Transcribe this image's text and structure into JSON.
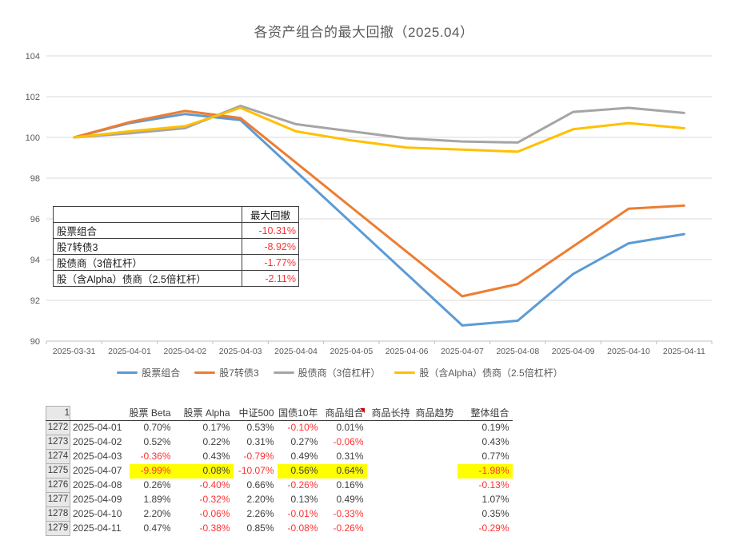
{
  "title": "各资产组合的最大回撤（2025.04）",
  "chart_data": {
    "type": "line",
    "title": "各资产组合的最大回撤（2025.04）",
    "x": [
      "2025-03-31",
      "2025-04-01",
      "2025-04-02",
      "2025-04-03",
      "2025-04-04",
      "2025-04-05",
      "2025-04-06",
      "2025-04-07",
      "2025-04-08",
      "2025-04-09",
      "2025-04-10",
      "2025-04-11"
    ],
    "ylim": [
      90,
      104
    ],
    "ytick_step": 2,
    "grid": true,
    "legend_position": "bottom",
    "series": [
      {
        "name": "股票组合",
        "color": "#5B9BD5",
        "values": [
          100,
          100.7,
          101.15,
          100.85,
          98.33,
          95.81,
          93.29,
          90.77,
          91.0,
          93.3,
          94.8,
          95.25
        ]
      },
      {
        "name": "股7转债3",
        "color": "#ED7D31",
        "values": [
          100,
          100.75,
          101.3,
          100.95,
          98.76,
          96.57,
          94.38,
          92.2,
          92.8,
          94.65,
          96.5,
          96.65
        ]
      },
      {
        "name": "股债商（3倍杠杆）",
        "color": "#A5A5A5",
        "values": [
          100,
          100.2,
          100.45,
          101.55,
          100.65,
          100.3,
          99.95,
          99.8,
          99.75,
          101.25,
          101.45,
          101.2
        ]
      },
      {
        "name": "股（含Alpha）债商（2.5倍杠杆）",
        "color": "#FFC000",
        "values": [
          100,
          100.3,
          100.55,
          101.45,
          100.3,
          99.85,
          99.5,
          99.4,
          99.3,
          100.4,
          100.7,
          100.45
        ]
      }
    ]
  },
  "drawdown_table": {
    "header": "最大回撤",
    "rows": [
      {
        "label": "股票组合",
        "value": "-10.31%"
      },
      {
        "label": "股7转债3",
        "value": "-8.92%"
      },
      {
        "label": "股债商（3倍杠杆）",
        "value": "-1.77%"
      },
      {
        "label": "股（含Alpha）债商（2.5倍杠杆）",
        "value": "-2.11%"
      }
    ]
  },
  "spreadsheet": {
    "header_row_number": "1",
    "columns": [
      {
        "label": "股票 Beta",
        "comment_marker": false
      },
      {
        "label": "股票 Alpha",
        "comment_marker": false
      },
      {
        "label": "中证500",
        "comment_marker": false
      },
      {
        "label": "国债10年",
        "comment_marker": false
      },
      {
        "label": "商品组合",
        "comment_marker": true
      },
      {
        "label": "商品长持",
        "comment_marker": false
      },
      {
        "label": "商品趋势",
        "comment_marker": false
      },
      {
        "label": "整体组合",
        "comment_marker": false
      }
    ],
    "rows": [
      {
        "row_number": "1272",
        "date": "2025-04-01",
        "cells": [
          "0.70%",
          "0.17%",
          "0.53%",
          "-0.10%",
          "0.01%",
          "",
          "",
          "0.19%"
        ],
        "highlight": [
          false,
          false,
          false,
          false,
          false,
          false,
          false,
          false
        ]
      },
      {
        "row_number": "1273",
        "date": "2025-04-02",
        "cells": [
          "0.52%",
          "0.22%",
          "0.31%",
          "0.27%",
          "-0.06%",
          "",
          "",
          "0.43%"
        ],
        "highlight": [
          false,
          false,
          false,
          false,
          false,
          false,
          false,
          false
        ]
      },
      {
        "row_number": "1274",
        "date": "2025-04-03",
        "cells": [
          "-0.36%",
          "0.43%",
          "-0.79%",
          "0.49%",
          "0.31%",
          "",
          "",
          "0.77%"
        ],
        "highlight": [
          false,
          false,
          false,
          false,
          false,
          false,
          false,
          false
        ]
      },
      {
        "row_number": "1275",
        "date": "2025-04-07",
        "cells": [
          "-9.99%",
          "0.08%",
          "-10.07%",
          "0.56%",
          "0.64%",
          "",
          "",
          "-1.98%"
        ],
        "highlight": [
          true,
          true,
          false,
          true,
          true,
          false,
          false,
          true
        ]
      },
      {
        "row_number": "1276",
        "date": "2025-04-08",
        "cells": [
          "0.26%",
          "-0.40%",
          "0.66%",
          "-0.26%",
          "0.16%",
          "",
          "",
          "-0.13%"
        ],
        "highlight": [
          false,
          false,
          false,
          false,
          false,
          false,
          false,
          false
        ]
      },
      {
        "row_number": "1277",
        "date": "2025-04-09",
        "cells": [
          "1.89%",
          "-0.32%",
          "2.20%",
          "0.13%",
          "0.49%",
          "",
          "",
          "1.07%"
        ],
        "highlight": [
          false,
          false,
          false,
          false,
          false,
          false,
          false,
          false
        ]
      },
      {
        "row_number": "1278",
        "date": "2025-04-10",
        "cells": [
          "2.20%",
          "-0.06%",
          "2.26%",
          "-0.01%",
          "-0.33%",
          "",
          "",
          "0.35%"
        ],
        "highlight": [
          false,
          false,
          false,
          false,
          false,
          false,
          false,
          false
        ]
      },
      {
        "row_number": "1279",
        "date": "2025-04-11",
        "cells": [
          "0.47%",
          "-0.38%",
          "0.85%",
          "-0.08%",
          "-0.26%",
          "",
          "",
          "-0.29%"
        ],
        "highlight": [
          false,
          false,
          false,
          false,
          false,
          false,
          false,
          false
        ]
      }
    ]
  },
  "colors": {
    "negative_text": "#FF3232",
    "positive_text": "#3F3F3F",
    "highlight": "#FFFF00",
    "gridline": "#D9D9D9",
    "axis": "#BFBFBF",
    "axis_label": "#595959",
    "title": "#595959"
  }
}
